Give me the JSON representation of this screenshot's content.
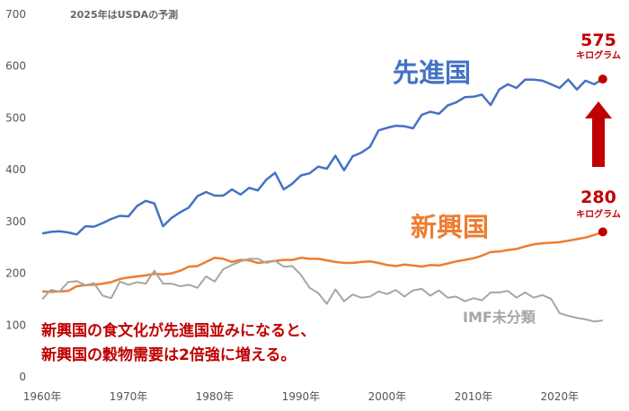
{
  "chart_data": {
    "type": "line",
    "note": "2025年はUSDAの予測",
    "ylim": [
      0,
      700
    ],
    "yticks": [
      "0",
      "100",
      "200",
      "300",
      "400",
      "500",
      "600",
      "700"
    ],
    "xlim": [
      1960,
      2027
    ],
    "xticks": [
      "1960年",
      "1970年",
      "1980年",
      "1990年",
      "2000年",
      "2010年",
      "2020年"
    ],
    "grid": false,
    "colors": {
      "developed": "#4472c4",
      "emerging": "#ed7d31",
      "unclassified": "#a6a6a6",
      "accent": "#c00000"
    },
    "series": [
      {
        "name": "先進国",
        "key": "developed",
        "x": [
          1960,
          1961,
          1962,
          1963,
          1964,
          1965,
          1966,
          1967,
          1968,
          1969,
          1970,
          1971,
          1972,
          1973,
          1974,
          1975,
          1976,
          1977,
          1978,
          1979,
          1980,
          1981,
          1982,
          1983,
          1984,
          1985,
          1986,
          1987,
          1988,
          1989,
          1990,
          1991,
          1992,
          1993,
          1994,
          1995,
          1996,
          1997,
          1998,
          1999,
          2000,
          2001,
          2002,
          2003,
          2004,
          2005,
          2006,
          2007,
          2008,
          2009,
          2010,
          2011,
          2012,
          2013,
          2014,
          2015,
          2016,
          2017,
          2018,
          2019,
          2020,
          2021,
          2022,
          2023,
          2024,
          2025
        ],
        "values": [
          277,
          280,
          281,
          279,
          275,
          291,
          290,
          297,
          305,
          311,
          310,
          330,
          340,
          335,
          291,
          307,
          318,
          327,
          349,
          357,
          350,
          350,
          362,
          352,
          365,
          360,
          381,
          394,
          362,
          373,
          389,
          393,
          406,
          402,
          427,
          399,
          426,
          433,
          444,
          476,
          481,
          485,
          484,
          480,
          506,
          512,
          508,
          524,
          530,
          540,
          541,
          545,
          525,
          555,
          565,
          558,
          574,
          574,
          572,
          565,
          558,
          574,
          555,
          572,
          565,
          575
        ]
      },
      {
        "name": "新興国",
        "key": "emerging",
        "x": [
          1960,
          1961,
          1962,
          1963,
          1964,
          1965,
          1966,
          1967,
          1968,
          1969,
          1970,
          1971,
          1972,
          1973,
          1974,
          1975,
          1976,
          1977,
          1978,
          1979,
          1980,
          1981,
          1982,
          1983,
          1984,
          1985,
          1986,
          1987,
          1988,
          1989,
          1990,
          1991,
          1992,
          1993,
          1994,
          1995,
          1996,
          1997,
          1998,
          1999,
          2000,
          2001,
          2002,
          2003,
          2004,
          2005,
          2006,
          2007,
          2008,
          2009,
          2010,
          2011,
          2012,
          2013,
          2014,
          2015,
          2016,
          2017,
          2018,
          2019,
          2020,
          2021,
          2022,
          2023,
          2024,
          2025
        ],
        "values": [
          165,
          164,
          165,
          166,
          175,
          177,
          178,
          180,
          183,
          189,
          192,
          194,
          196,
          199,
          198,
          200,
          205,
          213,
          214,
          222,
          230,
          228,
          222,
          226,
          225,
          220,
          222,
          224,
          226,
          226,
          230,
          228,
          228,
          225,
          222,
          220,
          220,
          222,
          223,
          220,
          216,
          214,
          217,
          215,
          213,
          216,
          215,
          219,
          223,
          226,
          229,
          234,
          241,
          242,
          245,
          247,
          252,
          256,
          258,
          259,
          260,
          263,
          266,
          269,
          274,
          280
        ]
      },
      {
        "name": "IMF未分類",
        "key": "unclassified",
        "x": [
          1960,
          1961,
          1962,
          1963,
          1964,
          1965,
          1966,
          1967,
          1968,
          1969,
          1970,
          1971,
          1972,
          1973,
          1974,
          1975,
          1976,
          1977,
          1978,
          1979,
          1980,
          1981,
          1982,
          1983,
          1984,
          1985,
          1986,
          1987,
          1988,
          1989,
          1990,
          1991,
          1992,
          1993,
          1994,
          1995,
          1996,
          1997,
          1998,
          1999,
          2000,
          2001,
          2002,
          2003,
          2004,
          2005,
          2006,
          2007,
          2008,
          2009,
          2010,
          2011,
          2012,
          2013,
          2014,
          2015,
          2016,
          2017,
          2018,
          2019,
          2020,
          2021,
          2022,
          2023,
          2024,
          2025
        ],
        "values": [
          150,
          168,
          165,
          183,
          185,
          177,
          181,
          157,
          152,
          184,
          178,
          183,
          180,
          205,
          180,
          180,
          175,
          178,
          172,
          194,
          184,
          208,
          216,
          223,
          228,
          228,
          220,
          224,
          213,
          214,
          197,
          172,
          162,
          141,
          169,
          146,
          159,
          153,
          155,
          165,
          160,
          168,
          155,
          167,
          170,
          157,
          167,
          153,
          155,
          146,
          152,
          148,
          163,
          163,
          166,
          153,
          163,
          153,
          158,
          151,
          123,
          118,
          114,
          111,
          107,
          109
        ]
      }
    ],
    "labels": {
      "developed": "先進国",
      "emerging": "新興国",
      "unclassified": "IMF未分類",
      "developed_value": "575",
      "developed_unit": "キログラム",
      "emerging_value": "280",
      "emerging_unit": "キログラム"
    },
    "caption_lines": [
      "新興国の食文化が先進国並みになると、",
      "新興国の穀物需要は2倍強に増える。"
    ]
  }
}
